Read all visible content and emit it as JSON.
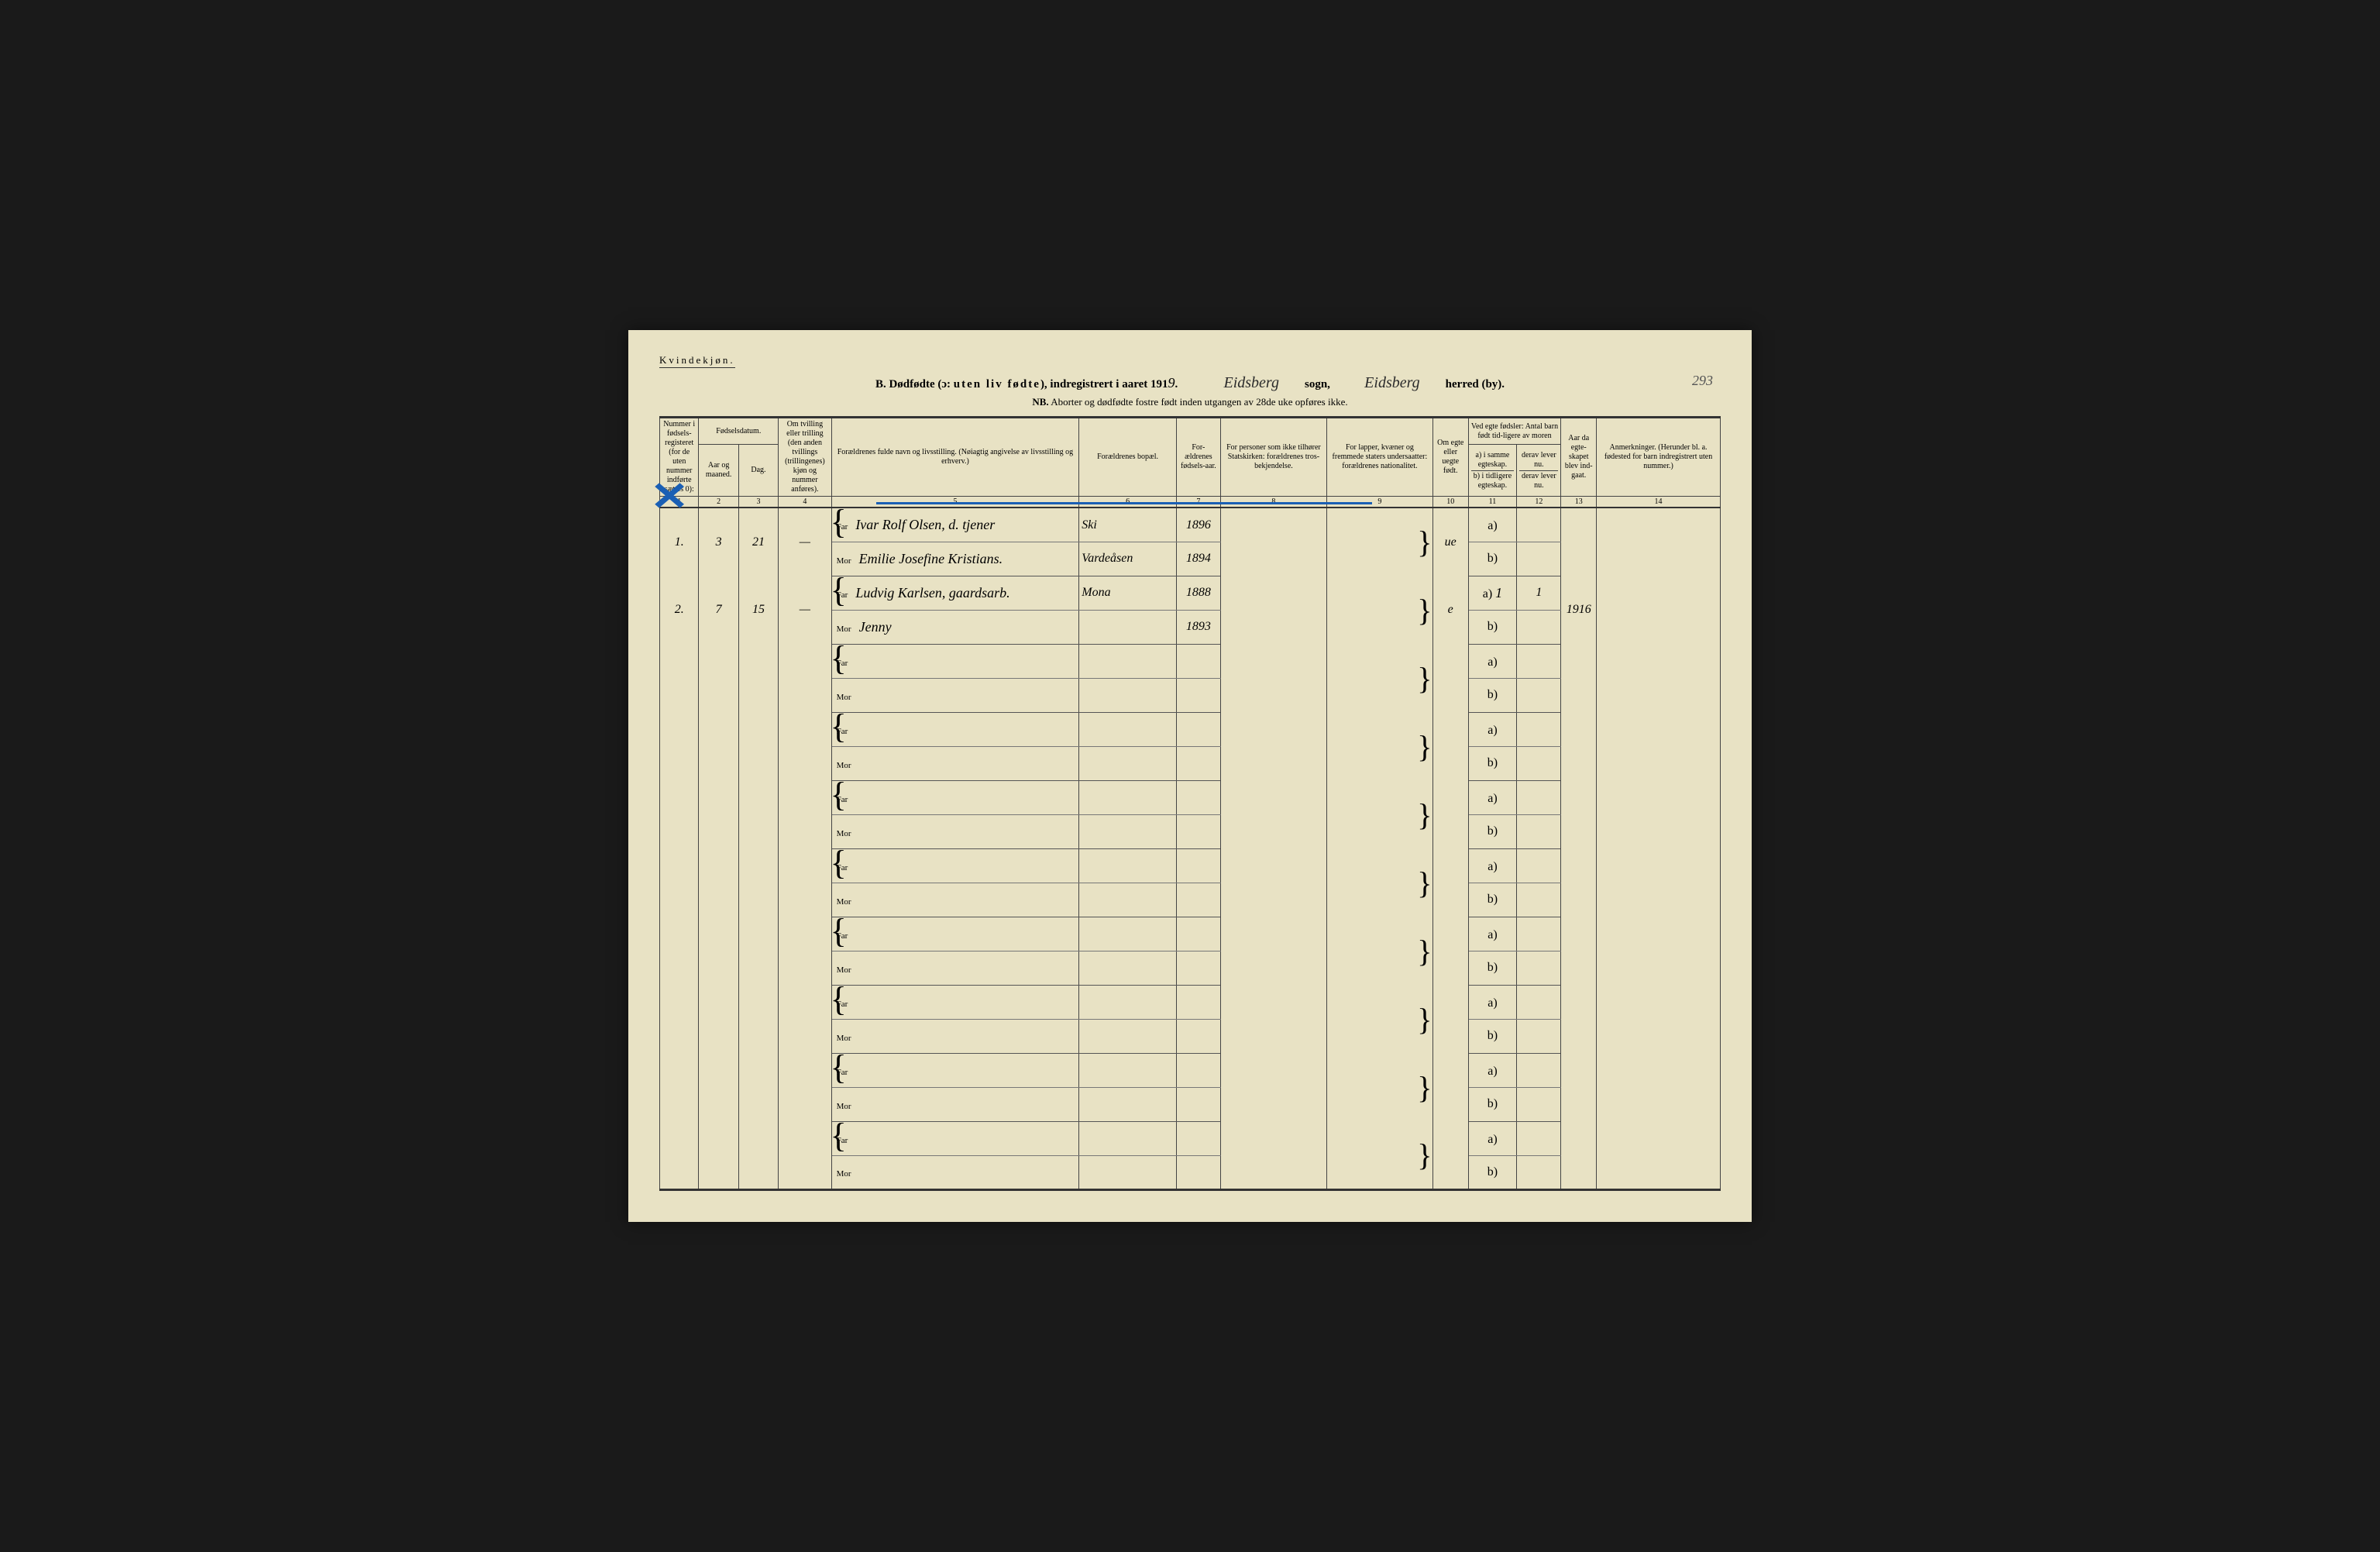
{
  "page": {
    "gender_label": "Kvindekjøn.",
    "page_number": "293",
    "title_prefix": "B. Dødfødte (ɔ:",
    "title_spaced": "uten liv fødte",
    "title_suffix": "), indregistrert i aaret 191",
    "year_suffix": "9",
    "sogn_label": "sogn,",
    "herred_label": "herred (by).",
    "sogn_value": "Eidsberg",
    "herred_value": "Eidsberg",
    "nb_prefix": "NB.",
    "nb_text": "Aborter og dødfødte fostre født inden utgangen av 28de uke opføres ikke."
  },
  "headers": {
    "c1": "Nummer i fødsels-registeret (for de uten nummer indførte sættes 0):",
    "c2_3_group": "Fødselsdatum.",
    "c2": "Aar og maaned.",
    "c3": "Dag.",
    "c4": "Om tvilling eller trilling (den anden tvillings (trillingenes) kjøn og nummer anføres).",
    "c5": "Forældrenes fulde navn og livsstilling.\n(Nøiagtig angivelse av livsstilling og erhverv.)",
    "c6": "Forældrenes bopæl.",
    "c7": "For-ældrenes fødsels-aar.",
    "c8": "For personer som ikke tilhører Statskirken: forældrenes tros-bekjendelse.",
    "c9": "For lapper, kvæner og fremmede staters undersaatter: forældrenes nationalitet.",
    "c10": "Om egte eller uegte født.",
    "c11_12_group": "Ved egte fødsler: Antal barn født tid-ligere av moren",
    "c11a": "a) i samme egteskap.",
    "c11b": "b) i tidligere egteskap.",
    "c12": "derav lever nu.",
    "c13": "Aar da egte-skapet blev ind-gaat.",
    "c14": "Anmerkninger. (Herunder bl. a. fødested for barn indregistrert uten nummer.)"
  },
  "colnums": [
    "1",
    "2",
    "3",
    "4",
    "5",
    "6",
    "7",
    "8",
    "9",
    "10",
    "11",
    "12",
    "13",
    "14"
  ],
  "parent_labels": {
    "far": "Far",
    "mor": "Mor"
  },
  "ab_labels": {
    "a": "a)",
    "b": "b)"
  },
  "rows": [
    {
      "num": "1.",
      "month": "3",
      "day": "21",
      "twin": "—",
      "far_name": "Ivar Rolf Olsen, d. tjener",
      "far_place": "Ski",
      "far_year": "1896",
      "mor_name": "Emilie Josefine Kristians.",
      "mor_place": "Vardeåsen",
      "mor_year": "1894",
      "legit": "ue",
      "c11": "",
      "c12": "",
      "c13": ""
    },
    {
      "num": "2.",
      "month": "7",
      "day": "15",
      "twin": "—",
      "far_name": "Ludvig Karlsen, gaardsarb.",
      "far_place": "Mona",
      "far_year": "1888",
      "mor_name": "Jenny",
      "mor_place": "",
      "mor_year": "1893",
      "legit": "e",
      "c11": "1",
      "c12": "1",
      "c13": "1916"
    }
  ],
  "empty_row_count": 8,
  "colors": {
    "paper": "#e8e2c4",
    "ink": "#2a2a2a",
    "blue": "#1a5fb4",
    "border": "#333333"
  }
}
